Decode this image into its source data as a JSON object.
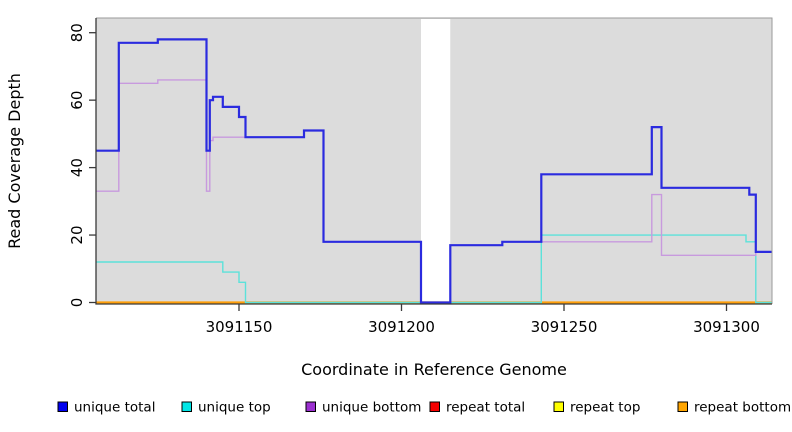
{
  "chart_data": {
    "type": "line",
    "subtype": "step",
    "title": "",
    "xlabel": "Coordinate in Reference Genome",
    "ylabel": "Read Coverage Depth",
    "xlim": [
      3091106,
      3091314
    ],
    "ylim": [
      0,
      84
    ],
    "x_ticks": [
      3091150,
      3091200,
      3091250,
      3091300
    ],
    "y_ticks": [
      0,
      20,
      40,
      60,
      80
    ],
    "grid": false,
    "legend_position": "bottom",
    "panel_bg": "#dcdcdc",
    "figure_bg": "#ffffff",
    "gap_region": {
      "x_start": 3091206,
      "x_end": 3091215,
      "color": "#ffffff"
    },
    "series": [
      {
        "name": "repeat total",
        "color": "#e00000",
        "legend_color": "#f50000",
        "width": 1.6,
        "points": [
          [
            3091106,
            0
          ]
        ],
        "x_end": 3091314
      },
      {
        "name": "repeat top",
        "color": "#ffff00",
        "legend_color": "#ffff00",
        "width": 1.6,
        "points": [
          [
            3091106,
            0
          ]
        ],
        "x_end": 3091314
      },
      {
        "name": "repeat bottom",
        "color": "#ff9f0a",
        "legend_color": "#ffa500",
        "width": 2.2,
        "points": [
          [
            3091106,
            0
          ]
        ],
        "x_end": 3091314
      },
      {
        "name": "unique top",
        "color": "#5ce2da",
        "legend_color": "#00e5e5",
        "width": 1.4,
        "points": [
          [
            3091106,
            12
          ],
          [
            3091145,
            9
          ],
          [
            3091150,
            6
          ],
          [
            3091152,
            0
          ],
          [
            3091243,
            20
          ],
          [
            3091306,
            18
          ],
          [
            3091309,
            0
          ]
        ],
        "x_end": 3091314
      },
      {
        "name": "unique bottom",
        "color": "#c89ade",
        "legend_color": "#9b30d0",
        "width": 1.4,
        "points": [
          [
            3091106,
            33
          ],
          [
            3091113,
            65
          ],
          [
            3091125,
            66
          ],
          [
            3091140,
            33
          ],
          [
            3091141,
            48
          ],
          [
            3091142,
            49
          ],
          [
            3091170,
            51
          ],
          [
            3091176,
            18
          ],
          [
            3091206,
            0
          ],
          [
            3091215,
            17
          ],
          [
            3091231,
            18
          ],
          [
            3091277,
            32
          ],
          [
            3091280,
            14
          ],
          [
            3091309,
            15
          ]
        ],
        "x_end": 3091314
      },
      {
        "name": "unique total",
        "color": "#2b2bdf",
        "legend_color": "#0000ee",
        "width": 2.2,
        "points": [
          [
            3091106,
            45
          ],
          [
            3091113,
            77
          ],
          [
            3091125,
            78
          ],
          [
            3091140,
            45
          ],
          [
            3091141,
            60
          ],
          [
            3091142,
            61
          ],
          [
            3091145,
            58
          ],
          [
            3091150,
            55
          ],
          [
            3091152,
            49
          ],
          [
            3091170,
            51
          ],
          [
            3091176,
            18
          ],
          [
            3091206,
            0
          ],
          [
            3091215,
            17
          ],
          [
            3091231,
            18
          ],
          [
            3091243,
            38
          ],
          [
            3091277,
            52
          ],
          [
            3091280,
            34
          ],
          [
            3091307,
            32
          ],
          [
            3091309,
            15
          ]
        ],
        "x_end": 3091314
      }
    ],
    "legend_order": [
      "unique total",
      "unique top",
      "unique bottom",
      "repeat total",
      "repeat top",
      "repeat bottom"
    ]
  }
}
